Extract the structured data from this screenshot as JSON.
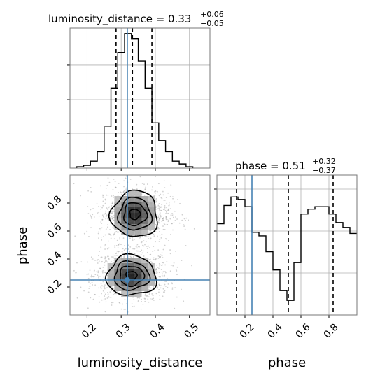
{
  "chart_data": {
    "type": "corner",
    "parameters": [
      "luminosity_distance",
      "phase"
    ],
    "xlabels": [
      "luminosity_distance",
      "phase"
    ],
    "ylabel": "phase",
    "truths": {
      "luminosity_distance": 0.318,
      "phase": 0.25
    },
    "luminosity_distance": {
      "title": {
        "prefix": "luminosity_distance = ",
        "median": "0.33",
        "plus": "+0.06",
        "minus": "−0.05"
      },
      "quantiles": [
        0.285,
        0.333,
        0.39
      ],
      "xlim": [
        0.15,
        0.56
      ],
      "xticks": [
        0.2,
        0.3,
        0.4,
        0.5
      ],
      "tick_labels": [
        "0.2",
        "0.3",
        "0.4",
        "0.5"
      ],
      "hist_bin_edges": [
        0.17,
        0.19,
        0.21,
        0.23,
        0.25,
        0.27,
        0.29,
        0.31,
        0.33,
        0.35,
        0.37,
        0.39,
        0.41,
        0.43,
        0.45,
        0.47,
        0.49,
        0.51
      ],
      "hist_counts": [
        1,
        2,
        5,
        12,
        30,
        58,
        84,
        98,
        94,
        78,
        58,
        33,
        20,
        12,
        5,
        3,
        1
      ],
      "hist_ylim": [
        0,
        102
      ]
    },
    "phase": {
      "title": {
        "prefix": "phase = ",
        "median": "0.51",
        "plus": "+0.32",
        "minus": "−0.37"
      },
      "quantiles": [
        0.14,
        0.51,
        0.83
      ],
      "xlim": [
        0.0,
        1.0
      ],
      "xticks": [
        0.2,
        0.4,
        0.6,
        0.8
      ],
      "tick_labels": [
        "0.2",
        "0.4",
        "0.6",
        "0.8"
      ],
      "hist_bin_edges": [
        0.0,
        0.05,
        0.1,
        0.15,
        0.2,
        0.25,
        0.3,
        0.35,
        0.4,
        0.45,
        0.5,
        0.55,
        0.6,
        0.65,
        0.7,
        0.75,
        0.8,
        0.85,
        0.9,
        0.95,
        1.0
      ],
      "hist_counts": [
        75,
        90,
        97,
        95,
        89,
        68,
        65,
        52,
        37,
        20,
        12,
        43,
        83,
        87,
        89,
        89,
        83,
        76,
        72,
        67
      ],
      "hist_ylim": [
        0,
        115
      ],
      "yticks_on_right_panel": [
        0.3,
        0.6,
        0.9
      ]
    },
    "joint_2d": {
      "type": "hist2d_contour",
      "x_edges": [
        0.285,
        0.305,
        0.325,
        0.345,
        0.365,
        0.385
      ],
      "y_edges": [
        0.72,
        0.76,
        0.8,
        0.84,
        0.88
      ],
      "cells": [
        [
          0.35,
          0.45,
          0.55,
          0.4,
          0.3
        ],
        [
          0.4,
          0.55,
          0.6,
          0.5,
          0.35
        ],
        [
          0.35,
          0.5,
          0.55,
          0.45,
          0.3
        ],
        [
          0.3,
          0.4,
          0.45,
          0.35,
          0.25
        ]
      ],
      "ylim": [
        0.0,
        1.0
      ],
      "yticks": [
        0.2,
        0.4,
        0.6,
        0.8
      ],
      "ytick_labels": [
        "0.2",
        "0.4",
        "0.6",
        "0.8"
      ],
      "modes": [
        {
          "center": [
            0.33,
            0.28
          ],
          "sigma": [
            0.035,
            0.07
          ]
        },
        {
          "center": [
            0.34,
            0.72
          ],
          "sigma": [
            0.033,
            0.08
          ]
        }
      ],
      "contour_levels": [
        0.9,
        0.6,
        0.35,
        0.12
      ]
    },
    "grid": true,
    "colors": {
      "hist": "#000000",
      "quantile": "#000000",
      "truth": "#4682b4",
      "grid": "#b0b0b0",
      "cells_dark": "#1a1a1a",
      "cells_light": "#bdbdbd"
    }
  }
}
